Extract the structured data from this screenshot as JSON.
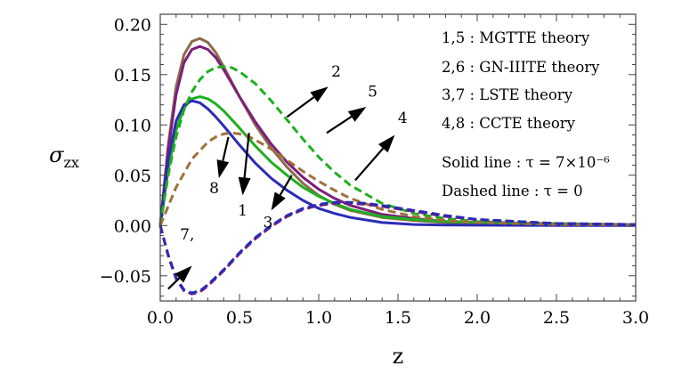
{
  "chart_data": {
    "type": "line",
    "xlabel": "z",
    "ylabel": "σzx",
    "ylabel_main": "σ",
    "ylabel_sub": "zx",
    "xlim": [
      0,
      3.0
    ],
    "ylim": [
      -0.075,
      0.21
    ],
    "x_ticks": [
      0.0,
      0.5,
      1.0,
      1.5,
      2.0,
      2.5,
      3.0
    ],
    "x_tick_labels": [
      "0.0",
      "0.5",
      "1.0",
      "1.5",
      "2.0",
      "2.5",
      "3.0"
    ],
    "y_ticks": [
      -0.05,
      0.0,
      0.05,
      0.1,
      0.15,
      0.2
    ],
    "y_tick_labels": [
      "−0.05",
      "0.00",
      "0.05",
      "0.10",
      "0.15",
      "0.20"
    ],
    "grid": false,
    "legend": [
      "1,5 : MGTTE theory",
      "2,6 : GN-IIITE theory",
      "3,7 : LSTE theory",
      "4,8 : CCTE theory",
      "Solid line : τ = 7×10⁻⁶",
      "Dashed line : τ = 0"
    ],
    "legend_position": "top-right",
    "series": [
      {
        "style": "solid",
        "color": "#8B6B4A",
        "x": [
          0,
          0.05,
          0.1,
          0.15,
          0.2,
          0.25,
          0.3,
          0.35,
          0.4,
          0.5,
          0.6,
          0.7,
          0.8,
          0.9,
          1.0,
          1.1,
          1.2,
          1.4,
          1.6,
          1.8,
          2.0,
          2.5,
          3.0
        ],
        "y": [
          0,
          0.08,
          0.138,
          0.17,
          0.183,
          0.186,
          0.182,
          0.172,
          0.158,
          0.128,
          0.1,
          0.077,
          0.058,
          0.042,
          0.03,
          0.021,
          0.015,
          0.008,
          0.005,
          0.003,
          0.002,
          0.001,
          0.001
        ]
      },
      {
        "style": "solid",
        "color": "#7B1F7B",
        "x": [
          0,
          0.05,
          0.1,
          0.15,
          0.2,
          0.25,
          0.3,
          0.35,
          0.4,
          0.5,
          0.6,
          0.7,
          0.8,
          0.9,
          1.0,
          1.1,
          1.2,
          1.4,
          1.6,
          1.8,
          2.0,
          2.5,
          3.0
        ],
        "y": [
          0,
          0.075,
          0.13,
          0.162,
          0.175,
          0.178,
          0.175,
          0.167,
          0.155,
          0.128,
          0.103,
          0.081,
          0.063,
          0.048,
          0.036,
          0.027,
          0.02,
          0.011,
          0.007,
          0.004,
          0.003,
          0.001,
          0.001
        ]
      },
      {
        "style": "solid",
        "color": "#1FAF1F",
        "x": [
          0,
          0.05,
          0.1,
          0.15,
          0.2,
          0.25,
          0.3,
          0.35,
          0.4,
          0.5,
          0.6,
          0.7,
          0.8,
          0.9,
          1.0,
          1.1,
          1.2,
          1.4,
          1.6,
          1.8,
          2.0,
          2.5,
          3.0
        ],
        "y": [
          0,
          0.055,
          0.095,
          0.117,
          0.126,
          0.128,
          0.126,
          0.121,
          0.114,
          0.097,
          0.079,
          0.063,
          0.05,
          0.038,
          0.029,
          0.022,
          0.016,
          0.009,
          0.006,
          0.004,
          0.003,
          0.002,
          0.001
        ]
      },
      {
        "style": "solid",
        "color": "#2B2BB8",
        "x": [
          0,
          0.05,
          0.1,
          0.15,
          0.2,
          0.25,
          0.3,
          0.35,
          0.4,
          0.5,
          0.6,
          0.7,
          0.8,
          0.9,
          1.0,
          1.1,
          1.2,
          1.4,
          1.6,
          1.8,
          2.0,
          2.5,
          3.0
        ],
        "y": [
          0,
          0.065,
          0.104,
          0.12,
          0.124,
          0.122,
          0.116,
          0.108,
          0.099,
          0.08,
          0.062,
          0.047,
          0.035,
          0.025,
          0.017,
          0.012,
          0.008,
          0.003,
          0.001,
          0.0005,
          0.0003,
          0.0001,
          0
        ]
      },
      {
        "style": "dashed",
        "color": "#1FAF1F",
        "x": [
          0,
          0.05,
          0.1,
          0.15,
          0.2,
          0.25,
          0.3,
          0.35,
          0.4,
          0.45,
          0.5,
          0.6,
          0.7,
          0.8,
          0.9,
          1.0,
          1.1,
          1.2,
          1.4,
          1.6,
          1.8,
          2.0,
          2.5,
          3.0
        ],
        "y": [
          0,
          0.05,
          0.088,
          0.115,
          0.133,
          0.145,
          0.153,
          0.157,
          0.158,
          0.157,
          0.153,
          0.141,
          0.124,
          0.105,
          0.086,
          0.068,
          0.053,
          0.04,
          0.022,
          0.012,
          0.007,
          0.004,
          0.001,
          0.001
        ]
      },
      {
        "style": "dashed",
        "color": "#A0703A",
        "x": [
          0,
          0.1,
          0.2,
          0.3,
          0.35,
          0.4,
          0.45,
          0.5,
          0.55,
          0.6,
          0.7,
          0.8,
          0.9,
          1.0,
          1.1,
          1.2,
          1.4,
          1.6,
          1.8,
          2.0,
          2.5,
          3.0
        ],
        "y": [
          0,
          0.038,
          0.066,
          0.083,
          0.088,
          0.091,
          0.092,
          0.091,
          0.089,
          0.085,
          0.076,
          0.065,
          0.054,
          0.044,
          0.035,
          0.027,
          0.016,
          0.009,
          0.005,
          0.003,
          0.001,
          0.001
        ]
      },
      {
        "style": "dashed",
        "color": "#7B1F7B",
        "x": [
          0,
          0.05,
          0.1,
          0.15,
          0.2,
          0.25,
          0.3,
          0.4,
          0.5,
          0.6,
          0.7,
          0.8,
          0.9,
          1.0,
          1.1,
          1.2,
          1.3,
          1.4,
          1.6,
          1.8,
          2.0,
          2.5,
          3.0
        ],
        "y": [
          0,
          -0.03,
          -0.053,
          -0.065,
          -0.068,
          -0.066,
          -0.06,
          -0.045,
          -0.028,
          -0.013,
          -0.001,
          0.009,
          0.016,
          0.02,
          0.022,
          0.022,
          0.021,
          0.019,
          0.014,
          0.009,
          0.006,
          0.002,
          0.001
        ]
      },
      {
        "style": "dashed",
        "color": "#2B2BB8",
        "x": [
          0,
          0.05,
          0.1,
          0.15,
          0.2,
          0.25,
          0.3,
          0.4,
          0.5,
          0.6,
          0.7,
          0.8,
          0.9,
          1.0,
          1.1,
          1.2,
          1.3,
          1.4,
          1.6,
          1.8,
          2.0,
          2.5,
          3.0
        ],
        "y": [
          0,
          -0.029,
          -0.052,
          -0.064,
          -0.067,
          -0.065,
          -0.059,
          -0.044,
          -0.027,
          -0.012,
          0.0,
          0.01,
          0.017,
          0.021,
          0.023,
          0.023,
          0.022,
          0.02,
          0.015,
          0.01,
          0.006,
          0.002,
          0.001
        ]
      }
    ],
    "annotations": [
      {
        "text": "2",
        "x": 1.11,
        "y": 0.148
      },
      {
        "text": "5",
        "x": 1.34,
        "y": 0.128
      },
      {
        "text": "4",
        "x": 1.53,
        "y": 0.102
      },
      {
        "text": "8",
        "x": 0.34,
        "y": 0.032
      },
      {
        "text": "1",
        "x": 0.52,
        "y": 0.01
      },
      {
        "text": "3",
        "x": 0.68,
        "y": -0.002
      },
      {
        "text": "7,",
        "x": 0.17,
        "y": -0.014
      }
    ],
    "arrows": [
      {
        "x1": 0.8,
        "y1": 0.108,
        "x2": 1.06,
        "y2": 0.138
      },
      {
        "x1": 1.05,
        "y1": 0.092,
        "x2": 1.3,
        "y2": 0.118
      },
      {
        "x1": 1.23,
        "y1": 0.045,
        "x2": 1.48,
        "y2": 0.09
      },
      {
        "x1": 0.43,
        "y1": 0.088,
        "x2": 0.37,
        "y2": 0.047
      },
      {
        "x1": 0.56,
        "y1": 0.092,
        "x2": 0.52,
        "y2": 0.03
      },
      {
        "x1": 0.83,
        "y1": 0.05,
        "x2": 0.7,
        "y2": 0.015
      },
      {
        "x1": 0.05,
        "y1": -0.063,
        "x2": 0.2,
        "y2": -0.04
      }
    ]
  }
}
